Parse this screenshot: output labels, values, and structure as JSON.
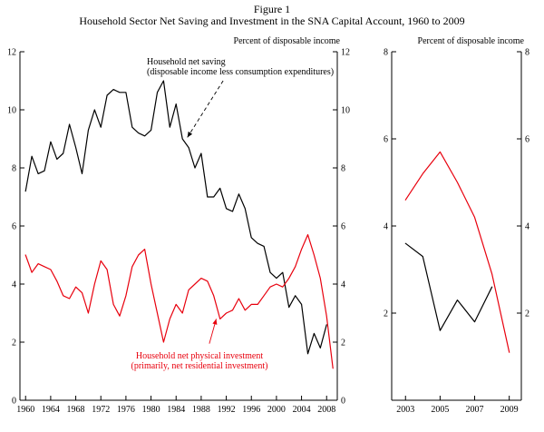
{
  "figure": {
    "title_line1": "Figure 1",
    "title_line2": "Household Sector Net Saving and Investment in the SNA Capital Account, 1960 to 2009"
  },
  "colors": {
    "saving": "#000000",
    "investment": "#e8000d",
    "background": "#ffffff"
  },
  "chart_data": [
    {
      "type": "line",
      "panel": "main",
      "axis_top_label": "Percent of disposable income",
      "xlim": [
        1959.1,
        2009.7
      ],
      "ylim": [
        0,
        12
      ],
      "grid": false,
      "legend_position": "none",
      "yticks": [
        0,
        2,
        4,
        6,
        8,
        10,
        12
      ],
      "xticks": [
        1960,
        1964,
        1968,
        1972,
        1976,
        1980,
        1984,
        1988,
        1992,
        1996,
        2000,
        2004,
        2008
      ],
      "series": [
        {
          "name": "Household net saving",
          "color": "#000000",
          "x": [
            1960,
            1961,
            1962,
            1963,
            1964,
            1965,
            1966,
            1967,
            1968,
            1969,
            1970,
            1971,
            1972,
            1973,
            1974,
            1975,
            1976,
            1977,
            1978,
            1979,
            1980,
            1981,
            1982,
            1983,
            1984,
            1985,
            1986,
            1987,
            1988,
            1989,
            1990,
            1991,
            1992,
            1993,
            1994,
            1995,
            1996,
            1997,
            1998,
            1999,
            2000,
            2001,
            2002,
            2003,
            2004,
            2005,
            2006,
            2007,
            2008
          ],
          "y": [
            7.2,
            8.4,
            7.8,
            7.9,
            8.9,
            8.3,
            8.5,
            9.5,
            8.7,
            7.8,
            9.3,
            10.0,
            9.4,
            10.5,
            10.7,
            10.6,
            10.6,
            9.4,
            9.2,
            9.1,
            9.3,
            10.6,
            11.0,
            9.4,
            10.2,
            9.0,
            8.7,
            8.0,
            8.5,
            7.0,
            7.0,
            7.3,
            6.6,
            6.5,
            7.1,
            6.6,
            5.6,
            5.4,
            5.3,
            4.4,
            4.2,
            4.4,
            3.2,
            3.6,
            3.3,
            1.6,
            2.3,
            1.8,
            2.6
          ]
        },
        {
          "name": "Household net physical investment",
          "color": "#e8000d",
          "x": [
            1960,
            1961,
            1962,
            1963,
            1964,
            1965,
            1966,
            1967,
            1968,
            1969,
            1970,
            1971,
            1972,
            1973,
            1974,
            1975,
            1976,
            1977,
            1978,
            1979,
            1980,
            1981,
            1982,
            1983,
            1984,
            1985,
            1986,
            1987,
            1988,
            1989,
            1990,
            1991,
            1992,
            1993,
            1994,
            1995,
            1996,
            1997,
            1998,
            1999,
            2000,
            2001,
            2002,
            2003,
            2004,
            2005,
            2006,
            2007,
            2008,
            2009
          ],
          "y": [
            5.0,
            4.4,
            4.7,
            4.6,
            4.5,
            4.1,
            3.6,
            3.5,
            3.9,
            3.7,
            3.0,
            4.0,
            4.8,
            4.5,
            3.3,
            2.9,
            3.6,
            4.6,
            5.0,
            5.2,
            4.0,
            3.0,
            2.0,
            2.8,
            3.3,
            3.0,
            3.8,
            4.0,
            4.2,
            4.1,
            3.6,
            2.8,
            3.0,
            3.1,
            3.5,
            3.1,
            3.3,
            3.3,
            3.6,
            3.9,
            4.0,
            3.9,
            4.2,
            4.6,
            5.2,
            5.7,
            5.0,
            4.2,
            2.9,
            1.1
          ]
        }
      ],
      "annotations": [
        {
          "text_lines": [
            "Household net saving",
            "(disposable income less consumption expenditures)"
          ],
          "color": "#000000",
          "arrow": {
            "from": [
              1991.5,
              11.0
            ],
            "to": [
              1985.8,
              9.05
            ],
            "dashed": true
          }
        },
        {
          "text_lines": [
            "Household net physical investment",
            "(primarily, net residential investment)"
          ],
          "color": "#e8000d",
          "arrow": {
            "from": [
              1989.3,
              1.95
            ],
            "to": [
              1990.4,
              2.8
            ],
            "dashed": false
          }
        }
      ]
    },
    {
      "type": "line",
      "panel": "recent",
      "axis_top_label": "Percent of disposable income",
      "xlim": [
        2002.2,
        2009.7
      ],
      "ylim": [
        0,
        8
      ],
      "grid": false,
      "legend_position": "none",
      "yticks": [
        2,
        4,
        6,
        8
      ],
      "xticks": [
        2003,
        2005,
        2007,
        2009
      ],
      "series": [
        {
          "name": "Household net saving",
          "color": "#000000",
          "x": [
            2003,
            2004,
            2005,
            2006,
            2007,
            2008
          ],
          "y": [
            3.6,
            3.3,
            1.6,
            2.3,
            1.8,
            2.6
          ]
        },
        {
          "name": "Household net physical investment",
          "color": "#e8000d",
          "x": [
            2003,
            2004,
            2005,
            2006,
            2007,
            2008,
            2009
          ],
          "y": [
            4.6,
            5.2,
            5.7,
            5.0,
            4.2,
            2.9,
            1.1
          ]
        }
      ]
    }
  ]
}
